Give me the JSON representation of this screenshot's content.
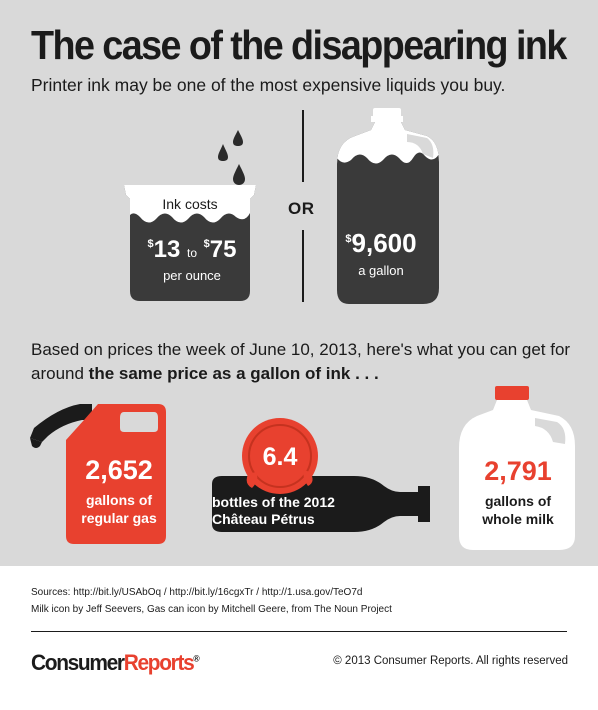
{
  "header": {
    "title": "The case of the disappearing ink",
    "subtitle": "Printer ink may be one of the most expensive liquids you buy."
  },
  "ink_comparison": {
    "ink_label": "Ink costs",
    "low_price": "13",
    "to": "to",
    "high_price": "75",
    "currency": "$",
    "ink_unit": "per ounce",
    "or_label": "OR",
    "gallon_price": "9,600",
    "gallon_unit": "a gallon"
  },
  "intro": {
    "text": "Based on prices the week of June 10, 2013, here's what you can get for around",
    "emphasis": "the same price as a gallon of ink . . ."
  },
  "items": {
    "gas": {
      "value": "2,652",
      "line1": "gallons of",
      "line2": "regular gas"
    },
    "wine": {
      "value": "6.4",
      "line1": "bottles of the 2012",
      "line2": "Château Pétrus"
    },
    "milk": {
      "value": "2,791",
      "line1": "gallons of",
      "line2": "whole milk"
    }
  },
  "footer": {
    "sources": "Sources: http://bit.ly/USAbOq   /   http://bit.ly/16cgxTr   /   http://1.usa.gov/TeO7d",
    "credit": "Milk icon by Jeff Seevers, Gas can icon by Mitchell Geere, from The Noun Project",
    "logo_part1": "Consumer",
    "logo_part2": "Reports",
    "logo_mark": "®",
    "copyright": "© 2013 Consumer Reports. All rights reserved"
  },
  "colors": {
    "background": "#d9d9d9",
    "ink": "#3a3a3a",
    "red": "#e8412f",
    "white": "#ffffff"
  }
}
